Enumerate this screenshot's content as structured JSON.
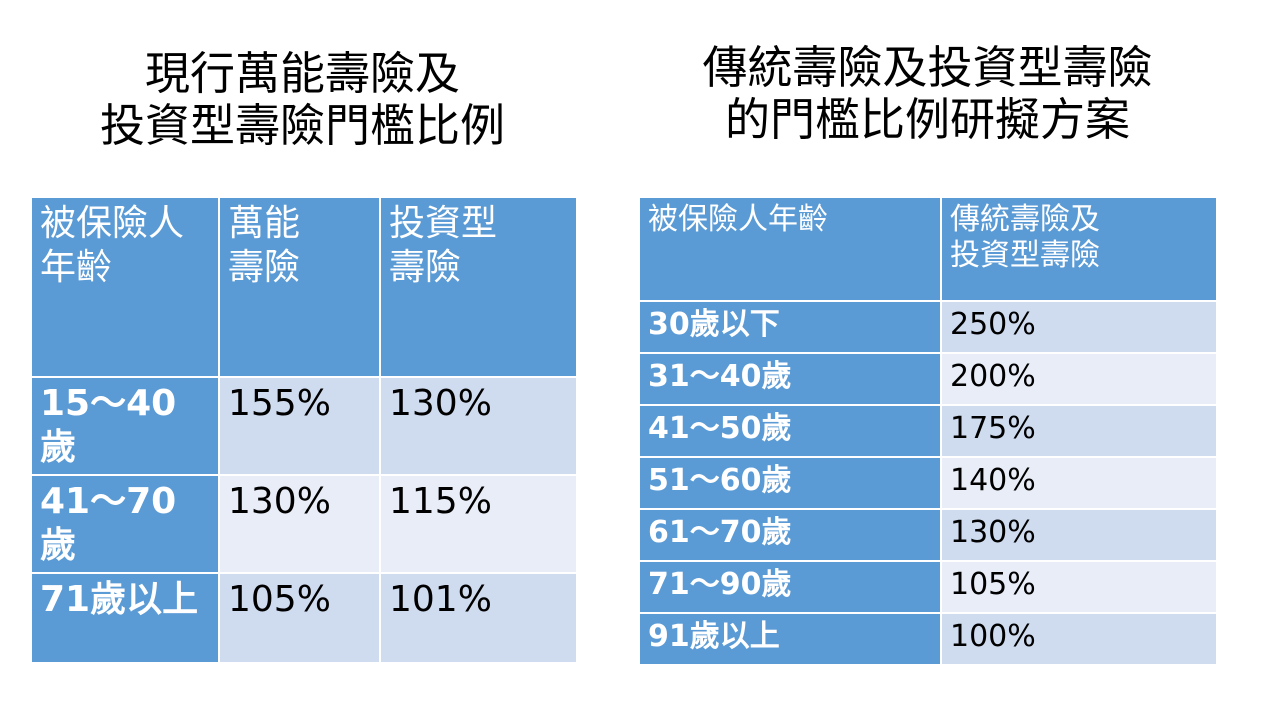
{
  "left": {
    "title_line1": "現行萬能壽險及",
    "title_line2": "投資型壽險門檻比例",
    "headers": [
      "被保險人年齡",
      "萬能壽險",
      "投資型壽險"
    ],
    "header_lines": [
      [
        "被保險人",
        "年齡"
      ],
      [
        "萬能",
        "壽險"
      ],
      [
        "投資型",
        "壽險"
      ]
    ],
    "rows": [
      [
        "15～40歲",
        "155%",
        "130%"
      ],
      [
        "41～70歲",
        "130%",
        "115%"
      ],
      [
        "71歲以上",
        "105%",
        "101%"
      ]
    ]
  },
  "right": {
    "title_line1": "傳統壽險及投資型壽險",
    "title_line2": "的門檻比例研擬方案",
    "headers": [
      "被保險人年齡",
      "傳統壽險及投資型壽險"
    ],
    "header_lines": [
      [
        "被保險人年齡"
      ],
      [
        "傳統壽險及",
        "投資型壽險"
      ]
    ],
    "rows": [
      [
        "30歲以下",
        "250%"
      ],
      [
        "31～40歲",
        "200%"
      ],
      [
        "41～50歲",
        "175%"
      ],
      [
        "51～60歲",
        "140%"
      ],
      [
        "61～70歲",
        "130%"
      ],
      [
        "71～90歲",
        "105%"
      ],
      [
        "91歲以上",
        "100%"
      ]
    ]
  },
  "colors": {
    "header_bg": "#5b9bd5",
    "row_even": "#cfdbee",
    "row_odd": "#e8edf7"
  }
}
